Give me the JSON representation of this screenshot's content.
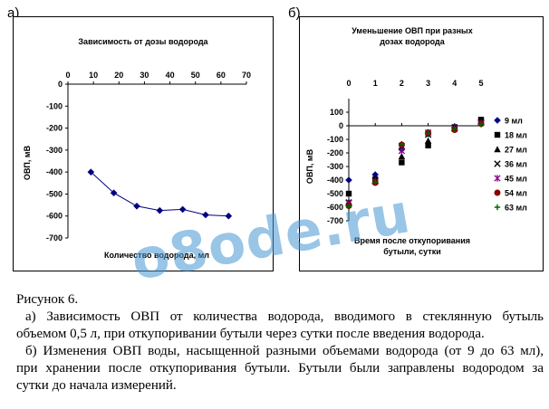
{
  "panels": {
    "a_label": "а)",
    "b_label": "б)"
  },
  "watermark": "o8ode.ru",
  "caption": {
    "title": "Рисунок 6.",
    "a_line1": "а) Зависимость ОВП от количества водорода, вводимого в стеклянную бутыль",
    "a_line2": "объемом 0,5 л, при откупоривании бутыли через сутки после введения водорода.",
    "b_line1": "б) Изменения ОВП воды, насыщенной разными объемами водорода (от 9 до 63 мл),",
    "b_line2": "при хранении после откупоривания бутыли. Бутыли были заправлены водородом за",
    "b_line3": "сутки до начала измерений."
  },
  "chart_data": [
    {
      "type": "line",
      "title": "Зависимость от дозы водорода",
      "xlabel": "Количество водорода, мл",
      "ylabel": "ОВП, мВ",
      "xlim": [
        0,
        70
      ],
      "ylim": [
        -700,
        0
      ],
      "xticks": [
        "0",
        "10",
        "20",
        "30",
        "40",
        "50",
        "60",
        "70"
      ],
      "yticks": [
        "0",
        "-100",
        "-200",
        "-300",
        "-400",
        "-500",
        "-600",
        "-700"
      ],
      "x_axis_position": "top",
      "grid": false,
      "series": [
        {
          "x": [
            9,
            18,
            27,
            36,
            45,
            54,
            63
          ],
          "values": [
            -400,
            -495,
            -555,
            -575,
            -570,
            -595,
            -600
          ],
          "color": "#000080"
        }
      ]
    },
    {
      "type": "scatter",
      "title": "Уменьшение ОВП при разных дозах водорода",
      "xlabel": "Время после откупоривания бутыли, сутки",
      "ylabel": "ОВП, мВ",
      "xlim": [
        0,
        5
      ],
      "ylim": [
        -700,
        100
      ],
      "xticks": [
        "0",
        "1",
        "2",
        "3",
        "4",
        "5"
      ],
      "yticks": [
        "100",
        "0",
        "-100",
        "-200",
        "-300",
        "-400",
        "-500",
        "-600",
        "-700"
      ],
      "x_axis_position": "top",
      "grid": false,
      "legend": "right",
      "x": [
        0,
        1,
        2,
        3,
        4,
        5
      ],
      "series": [
        {
          "name": "9 мл",
          "marker": "diamond",
          "color": "#000080",
          "values": [
            -400,
            -360,
            -175,
            -60,
            -15,
            40
          ]
        },
        {
          "name": "18 мл",
          "marker": "square",
          "color": "#000000",
          "values": [
            -500,
            -395,
            -270,
            -145,
            -10,
            45
          ]
        },
        {
          "name": "27 мл",
          "marker": "triangle",
          "color": "#000000",
          "values": [
            -560,
            -400,
            -225,
            -110,
            -20,
            30
          ]
        },
        {
          "name": "36 мл",
          "marker": "x",
          "color": "#000000",
          "values": [
            -565,
            -405,
            -150,
            -65,
            -15,
            25
          ]
        },
        {
          "name": "45 мл",
          "marker": "star",
          "color": "#8b008b",
          "values": [
            -570,
            -410,
            -185,
            -50,
            -20,
            20
          ]
        },
        {
          "name": "54 мл",
          "marker": "circle",
          "color": "#8b0000",
          "values": [
            -590,
            -420,
            -140,
            -50,
            -30,
            15
          ]
        },
        {
          "name": "63 мл",
          "marker": "plus",
          "color": "#006400",
          "values": [
            -595,
            -415,
            -135,
            -55,
            -25,
            10
          ]
        }
      ]
    }
  ]
}
